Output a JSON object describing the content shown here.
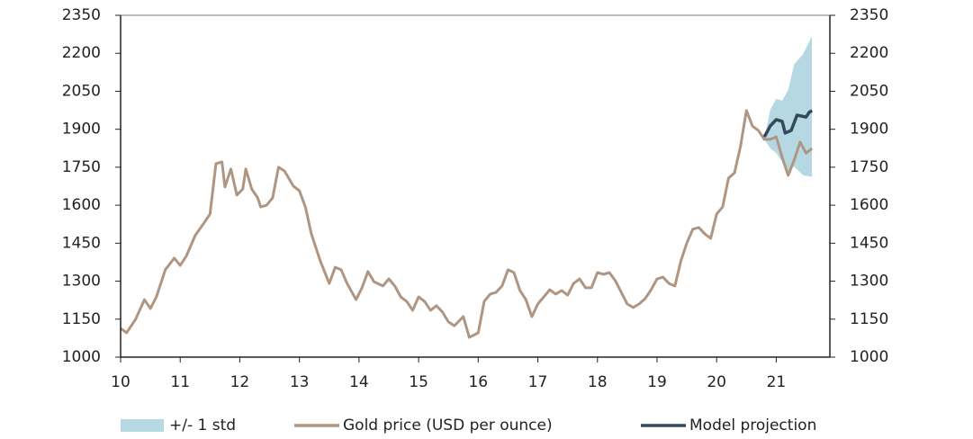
{
  "chart_data": {
    "type": "line",
    "xlim": [
      10,
      21.9
    ],
    "xticks": [
      10,
      11,
      12,
      13,
      14,
      15,
      16,
      17,
      18,
      19,
      20,
      21
    ],
    "ylim": [
      1000,
      2350
    ],
    "yticks": [
      1000,
      1150,
      1300,
      1450,
      1600,
      1750,
      1900,
      2050,
      2200,
      2350
    ],
    "y2lim": [
      1000,
      2350
    ],
    "y2ticks": [
      1000,
      1150,
      1300,
      1450,
      1600,
      1750,
      1900,
      2050,
      2200,
      2350
    ],
    "legend": "bottom",
    "series": [
      {
        "name": "+/- 1 std",
        "type": "band",
        "color": "#b5d8e2",
        "x": [
          20.8,
          20.9,
          21.0,
          21.1,
          21.2,
          21.3,
          21.45,
          21.6
        ],
        "upper": [
          1860,
          1977,
          2020,
          2013,
          2055,
          2155,
          2197,
          2268
        ],
        "lower": [
          1860,
          1824,
          1806,
          1771,
          1735,
          1753,
          1718,
          1712
        ]
      },
      {
        "name": "Gold price (USD per ounce)",
        "color": "#ae9683",
        "x": [
          10.0,
          10.1,
          10.25,
          10.4,
          10.5,
          10.6,
          10.75,
          10.9,
          11.0,
          11.1,
          11.25,
          11.4,
          11.5,
          11.6,
          11.7,
          11.75,
          11.85,
          11.95,
          12.05,
          12.1,
          12.2,
          12.3,
          12.35,
          12.45,
          12.55,
          12.65,
          12.75,
          12.9,
          13.0,
          13.1,
          13.2,
          13.35,
          13.5,
          13.6,
          13.7,
          13.8,
          13.95,
          14.05,
          14.15,
          14.25,
          14.4,
          14.5,
          14.6,
          14.7,
          14.8,
          14.9,
          15.0,
          15.1,
          15.2,
          15.3,
          15.4,
          15.5,
          15.6,
          15.75,
          15.85,
          16.0,
          16.1,
          16.2,
          16.3,
          16.4,
          16.5,
          16.6,
          16.7,
          16.8,
          16.9,
          17.0,
          17.1,
          17.2,
          17.3,
          17.4,
          17.5,
          17.6,
          17.7,
          17.8,
          17.9,
          18.0,
          18.1,
          18.2,
          18.3,
          18.4,
          18.5,
          18.6,
          18.7,
          18.8,
          18.9,
          19.0,
          19.1,
          19.2,
          19.3,
          19.4,
          19.5,
          19.6,
          19.7,
          19.8,
          19.9,
          20.0,
          20.1,
          20.2,
          20.3,
          20.4,
          20.5,
          20.6,
          20.7,
          20.8,
          20.9,
          21.0,
          21.1,
          21.2,
          21.3,
          21.4,
          21.5,
          21.6
        ],
        "values": [
          1114,
          1096,
          1149,
          1227,
          1192,
          1238,
          1345,
          1391,
          1362,
          1398,
          1480,
          1530,
          1565,
          1764,
          1771,
          1672,
          1743,
          1640,
          1664,
          1743,
          1664,
          1629,
          1593,
          1600,
          1629,
          1750,
          1735,
          1675,
          1657,
          1593,
          1487,
          1380,
          1291,
          1355,
          1345,
          1291,
          1227,
          1274,
          1338,
          1298,
          1281,
          1309,
          1281,
          1238,
          1220,
          1185,
          1238,
          1220,
          1185,
          1203,
          1178,
          1139,
          1124,
          1160,
          1078,
          1096,
          1220,
          1249,
          1256,
          1281,
          1345,
          1334,
          1263,
          1227,
          1160,
          1210,
          1238,
          1266,
          1249,
          1263,
          1245,
          1291,
          1309,
          1274,
          1274,
          1334,
          1327,
          1334,
          1302,
          1256,
          1210,
          1196,
          1210,
          1231,
          1266,
          1309,
          1316,
          1291,
          1281,
          1380,
          1451,
          1505,
          1512,
          1487,
          1469,
          1565,
          1593,
          1707,
          1728,
          1832,
          1974,
          1913,
          1895,
          1860,
          1860,
          1870,
          1789,
          1718,
          1778,
          1849,
          1806,
          1824
        ]
      },
      {
        "name": "Model projection",
        "color": "#34495e",
        "x": [
          20.8,
          20.9,
          21.0,
          21.1,
          21.15,
          21.25,
          21.35,
          21.5,
          21.55,
          21.6
        ],
        "values": [
          1870,
          1913,
          1938,
          1931,
          1885,
          1895,
          1956,
          1948,
          1966,
          1974
        ]
      }
    ]
  }
}
